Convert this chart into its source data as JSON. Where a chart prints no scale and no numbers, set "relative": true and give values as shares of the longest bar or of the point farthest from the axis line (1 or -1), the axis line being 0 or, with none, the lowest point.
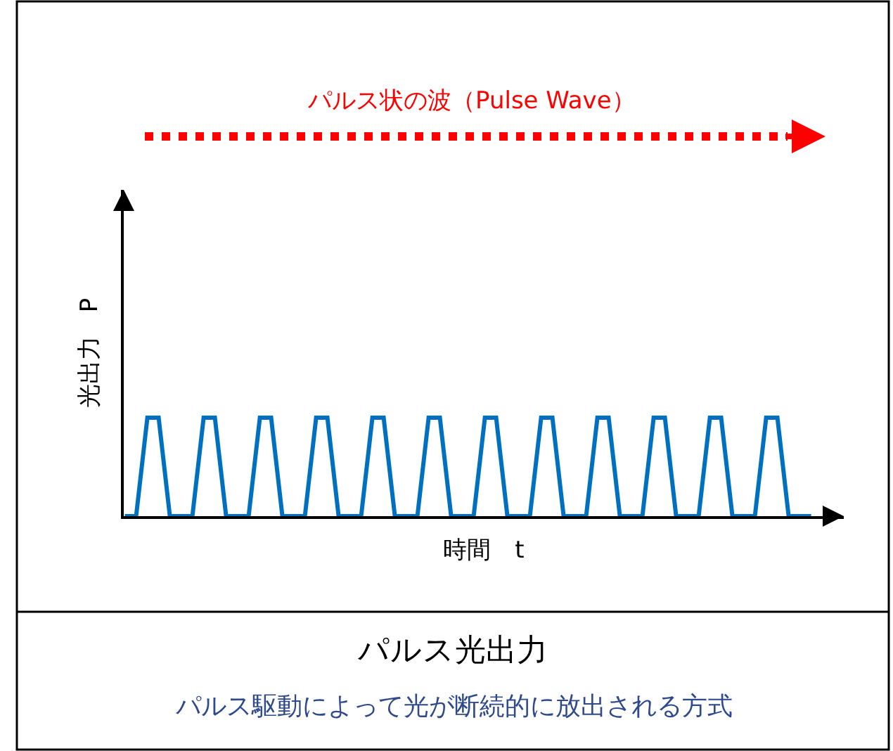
{
  "chart_data": {
    "type": "line",
    "relative": true,
    "title": "パルス光出力",
    "subtitle": "パルス駆動によって光が断続的に放出される方式",
    "xlabel": "時間　t",
    "ylabel": "光出力　P",
    "annotations": [
      "パルス状の波（Pulse Wave）"
    ],
    "categories": [
      null,
      null,
      null,
      null,
      null,
      null,
      null,
      null,
      null,
      null,
      null,
      null,
      null,
      null,
      null,
      null,
      null,
      null,
      null,
      null,
      null,
      null,
      null,
      null,
      null,
      null,
      null,
      null,
      null,
      null,
      null,
      null,
      null,
      null,
      null,
      null,
      null,
      null,
      null,
      null,
      null,
      null,
      null,
      null,
      null,
      null,
      null,
      null,
      null,
      null,
      null,
      null,
      null,
      null,
      null,
      null,
      null,
      null,
      null,
      null,
      null,
      null
    ],
    "series": [
      {
        "color": "#0070c0",
        "values": [
          0,
          0,
          1,
          1,
          0,
          0,
          0,
          1,
          1,
          0,
          0,
          0,
          1,
          1,
          0,
          0,
          0,
          1,
          1,
          0,
          0,
          0,
          1,
          1,
          0,
          0,
          0,
          1,
          1,
          0,
          0,
          0,
          1,
          1,
          0,
          0,
          0,
          1,
          1,
          0,
          0,
          0,
          1,
          1,
          0,
          0,
          0,
          1,
          1,
          0,
          0,
          0,
          1,
          1,
          0,
          0,
          0,
          1,
          1,
          0,
          0,
          0
        ]
      }
    ],
    "marker": "none",
    "line_style": "solid"
  }
}
